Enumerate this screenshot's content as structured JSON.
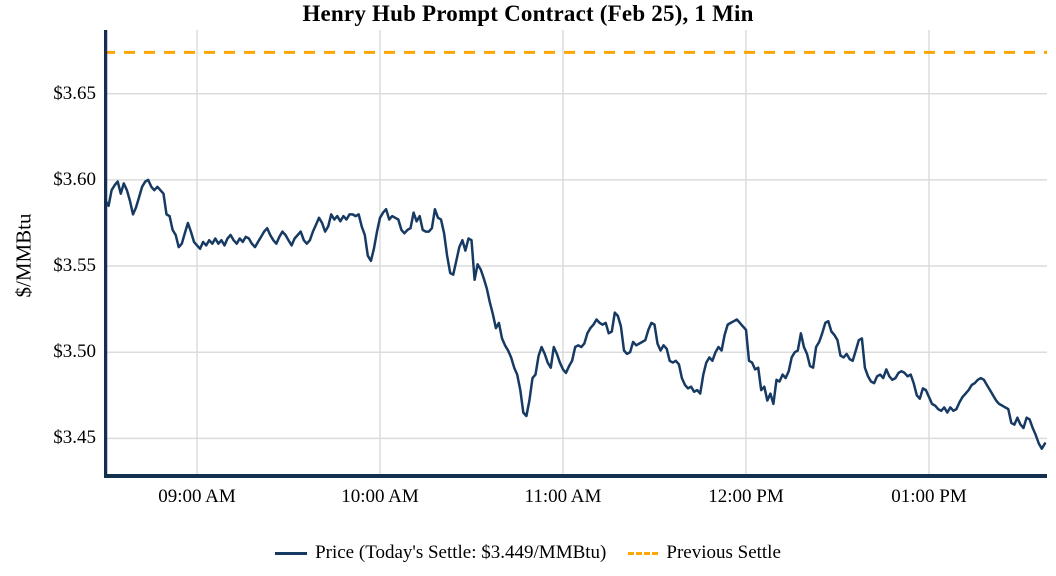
{
  "title": "Henry Hub Prompt Contract (Feb 25), 1 Min",
  "y_axis": {
    "title": "$/MMBtu",
    "tick_labels": [
      "$3.65",
      "$3.60",
      "$3.55",
      "$3.50",
      "$3.45"
    ]
  },
  "x_axis": {
    "tick_labels": [
      "09:00 AM",
      "10:00 AM",
      "11:00 AM",
      "12:00 PM",
      "01:00 PM"
    ]
  },
  "legend": {
    "price_label": "Price (Today's Settle: $3.449/MMBtu)",
    "previous_settle_label": "Previous Settle"
  },
  "colors": {
    "price_line": "#173A63",
    "previous_settle": "#FFA500",
    "gridline": "#DCDCDC",
    "axis": "#14304F",
    "text": "#000000"
  },
  "chart_data": {
    "type": "line",
    "title": "Henry Hub Prompt Contract (Feb 25), 1 Min",
    "xlabel": "",
    "ylabel": "$/MMBtu",
    "ylim": [
      3.427,
      3.687
    ],
    "xlim_minutes": [
      -0.5,
      308.7
    ],
    "grid": true,
    "legend_position": "bottom-center",
    "y_ticks": [
      {
        "value": 3.45,
        "label": "$3.45"
      },
      {
        "value": 3.5,
        "label": "$3.50"
      },
      {
        "value": 3.55,
        "label": "$3.55"
      },
      {
        "value": 3.6,
        "label": "$3.60"
      },
      {
        "value": 3.65,
        "label": "$3.65"
      }
    ],
    "x_ticks": [
      {
        "minute": 30,
        "label": "09:00 AM"
      },
      {
        "minute": 90,
        "label": "10:00 AM"
      },
      {
        "minute": 150,
        "label": "11:00 AM"
      },
      {
        "minute": 210,
        "label": "12:00 PM"
      },
      {
        "minute": 270,
        "label": "01:00 PM"
      }
    ],
    "previous_settle_value": 3.674,
    "todays_settle_value": 3.449,
    "series": [
      {
        "name": "Price",
        "style": "solid",
        "color": "#173A63",
        "start_time": "08:30 AM",
        "interval_minutes": 1,
        "values": [
          3.588,
          3.585,
          3.594,
          3.597,
          3.599,
          3.592,
          3.598,
          3.594,
          3.588,
          3.58,
          3.584,
          3.59,
          3.596,
          3.599,
          3.6,
          3.596,
          3.594,
          3.596,
          3.594,
          3.592,
          3.58,
          3.579,
          3.571,
          3.568,
          3.561,
          3.563,
          3.569,
          3.575,
          3.57,
          3.564,
          3.562,
          3.56,
          3.564,
          3.562,
          3.565,
          3.563,
          3.566,
          3.563,
          3.565,
          3.562,
          3.566,
          3.568,
          3.565,
          3.563,
          3.566,
          3.564,
          3.567,
          3.566,
          3.563,
          3.561,
          3.564,
          3.567,
          3.57,
          3.572,
          3.568,
          3.565,
          3.563,
          3.567,
          3.57,
          3.568,
          3.565,
          3.562,
          3.566,
          3.568,
          3.57,
          3.565,
          3.563,
          3.565,
          3.57,
          3.574,
          3.578,
          3.575,
          3.57,
          3.573,
          3.58,
          3.577,
          3.579,
          3.576,
          3.579,
          3.577,
          3.58,
          3.58,
          3.579,
          3.58,
          3.573,
          3.568,
          3.556,
          3.553,
          3.56,
          3.57,
          3.578,
          3.581,
          3.583,
          3.577,
          3.579,
          3.578,
          3.577,
          3.571,
          3.569,
          3.571,
          3.572,
          3.581,
          3.576,
          3.579,
          3.571,
          3.57,
          3.57,
          3.572,
          3.583,
          3.578,
          3.577,
          3.569,
          3.556,
          3.546,
          3.545,
          3.553,
          3.561,
          3.565,
          3.559,
          3.566,
          3.565,
          3.542,
          3.551,
          3.548,
          3.543,
          3.537,
          3.529,
          3.522,
          3.514,
          3.517,
          3.508,
          3.504,
          3.501,
          3.497,
          3.491,
          3.487,
          3.478,
          3.465,
          3.463,
          3.472,
          3.485,
          3.487,
          3.498,
          3.503,
          3.499,
          3.494,
          3.491,
          3.503,
          3.499,
          3.494,
          3.49,
          3.488,
          3.492,
          3.495,
          3.503,
          3.504,
          3.503,
          3.505,
          3.511,
          3.514,
          3.516,
          3.519,
          3.517,
          3.516,
          3.517,
          3.511,
          3.512,
          3.523,
          3.521,
          3.515,
          3.501,
          3.499,
          3.5,
          3.506,
          3.504,
          3.505,
          3.506,
          3.507,
          3.513,
          3.517,
          3.516,
          3.505,
          3.501,
          3.504,
          3.502,
          3.495,
          3.494,
          3.495,
          3.493,
          3.485,
          3.481,
          3.479,
          3.48,
          3.477,
          3.478,
          3.476,
          3.487,
          3.494,
          3.497,
          3.495,
          3.5,
          3.503,
          3.501,
          3.51,
          3.516,
          3.517,
          3.518,
          3.519,
          3.517,
          3.515,
          3.513,
          3.495,
          3.494,
          3.49,
          3.491,
          3.478,
          3.48,
          3.472,
          3.476,
          3.47,
          3.484,
          3.483,
          3.487,
          3.485,
          3.489,
          3.497,
          3.5,
          3.501,
          3.511,
          3.503,
          3.499,
          3.492,
          3.491,
          3.503,
          3.506,
          3.511,
          3.517,
          3.518,
          3.512,
          3.51,
          3.507,
          3.498,
          3.497,
          3.499,
          3.496,
          3.495,
          3.501,
          3.507,
          3.508,
          3.491,
          3.486,
          3.483,
          3.482,
          3.486,
          3.487,
          3.485,
          3.49,
          3.486,
          3.484,
          3.485,
          3.488,
          3.489,
          3.488,
          3.486,
          3.487,
          3.482,
          3.475,
          3.473,
          3.479,
          3.478,
          3.474,
          3.47,
          3.469,
          3.467,
          3.466,
          3.468,
          3.465,
          3.468,
          3.466,
          3.467,
          3.471,
          3.474,
          3.476,
          3.478,
          3.481,
          3.482,
          3.484,
          3.485,
          3.484,
          3.481,
          3.478,
          3.475,
          3.472,
          3.47,
          3.469,
          3.468,
          3.467,
          3.459,
          3.458,
          3.462,
          3.458,
          3.456,
          3.462,
          3.461,
          3.456,
          3.452,
          3.447,
          3.444,
          3.447
        ]
      },
      {
        "name": "Previous Settle",
        "style": "dashed",
        "color": "#FFA500",
        "value": 3.674
      }
    ]
  }
}
